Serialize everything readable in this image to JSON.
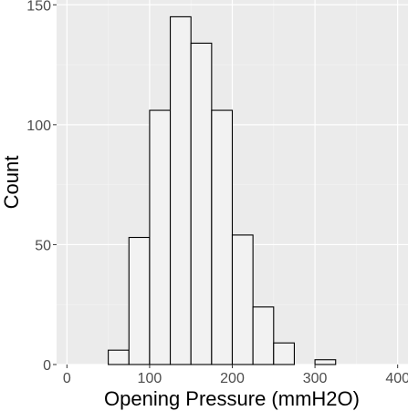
{
  "chart_data": {
    "type": "bar",
    "subtype": "histogram",
    "title": "",
    "xlabel": "Opening Pressure (mmH2O)",
    "ylabel": "Count",
    "bins": [
      {
        "start": 0,
        "end": 25,
        "count": 0
      },
      {
        "start": 25,
        "end": 50,
        "count": 0
      },
      {
        "start": 50,
        "end": 75,
        "count": 6
      },
      {
        "start": 75,
        "end": 100,
        "count": 53
      },
      {
        "start": 100,
        "end": 125,
        "count": 106
      },
      {
        "start": 125,
        "end": 150,
        "count": 145
      },
      {
        "start": 150,
        "end": 175,
        "count": 134
      },
      {
        "start": 175,
        "end": 200,
        "count": 106
      },
      {
        "start": 200,
        "end": 225,
        "count": 54
      },
      {
        "start": 225,
        "end": 250,
        "count": 24
      },
      {
        "start": 250,
        "end": 275,
        "count": 9
      },
      {
        "start": 275,
        "end": 300,
        "count": 0
      },
      {
        "start": 300,
        "end": 325,
        "count": 2
      },
      {
        "start": 325,
        "end": 350,
        "count": 0
      },
      {
        "start": 350,
        "end": 375,
        "count": 0
      },
      {
        "start": 375,
        "end": 400,
        "count": 0
      }
    ],
    "xlim": [
      -12.5,
      412.5
    ],
    "ylim": [
      0,
      152
    ],
    "x_ticks": [
      0,
      100,
      200,
      300,
      400
    ],
    "y_ticks": [
      0,
      50,
      100,
      150
    ],
    "x_minor_ticks": [
      50,
      150,
      250,
      350
    ],
    "y_minor_ticks": [
      25,
      75,
      125
    ],
    "grid": true,
    "legend": "none",
    "colors": {
      "panel_background": "#ebebeb",
      "grid_major": "#ffffff",
      "grid_minor": "#f5f5f5",
      "bar_fill": "#f2f2f2",
      "bar_stroke": "#000000",
      "tick_label": "#4d4d4d",
      "axis_title": "#000000"
    }
  }
}
